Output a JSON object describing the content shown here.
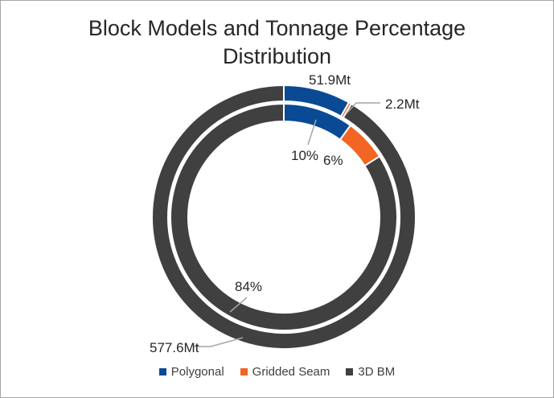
{
  "chart_data": {
    "type": "donut",
    "title": [
      "Block Models and Tonnage Percentage",
      "Distribution"
    ],
    "categories": [
      "Polygonal",
      "Gridded Seam",
      "3D BM"
    ],
    "colors": [
      "#0a4a95",
      "#f26522",
      "#404040"
    ],
    "rings": [
      {
        "ring": "outer",
        "values": [
          51.9,
          2.2,
          577.6
        ],
        "unit": "Mt",
        "labels": [
          "51.9Mt",
          "2.2Mt",
          "577.6Mt"
        ]
      },
      {
        "ring": "inner",
        "values": [
          10,
          6,
          84
        ],
        "unit": "%",
        "labels": [
          "10%",
          "6%",
          "84%"
        ]
      }
    ],
    "legend": {
      "position": "bottom",
      "entries": [
        "Polygonal",
        "Gridded Seam",
        "3D BM"
      ]
    }
  }
}
